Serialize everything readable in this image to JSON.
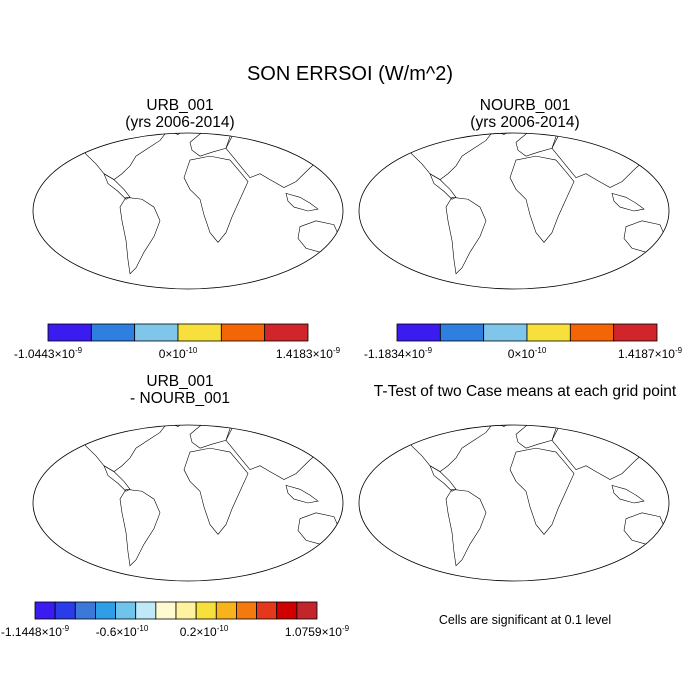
{
  "chart_data": [
    {
      "type": "heatmap",
      "title": "URB_001",
      "subtitle": "(yrs 2006-2014)",
      "colorbar": {
        "colors": [
          "#3b1cf0",
          "#2f7fe0",
          "#7fc6ea",
          "#f7df3c",
          "#f46508",
          "#d0252a"
        ],
        "min_label": "-1.0443×10",
        "min_exp": "-9",
        "mid_label": "0×10",
        "mid_exp": "-10",
        "max_label": "1.4183×10",
        "max_exp": "-9"
      }
    },
    {
      "type": "heatmap",
      "title": "NOURB_001",
      "subtitle": "(yrs 2006-2014)",
      "colorbar": {
        "colors": [
          "#3b1cf0",
          "#2f7fe0",
          "#7fc6ea",
          "#f7df3c",
          "#f46508",
          "#d0252a"
        ],
        "min_label": "-1.1834×10",
        "min_exp": "-9",
        "mid_label": "0×10",
        "mid_exp": "-10",
        "max_label": "1.4187×10",
        "max_exp": "-9"
      }
    },
    {
      "type": "heatmap",
      "title": "URB_001",
      "subtitle": "- NOURB_001",
      "colorbar": {
        "colors": [
          "#3b1cf0",
          "#2a3bea",
          "#3b78d8",
          "#2f9ee8",
          "#6fc4ec",
          "#bfe8f8",
          "#fffbd0",
          "#fff3a0",
          "#f7df3c",
          "#f7b21c",
          "#f47a10",
          "#e4371c",
          "#d00000",
          "#c2252a"
        ],
        "min_label": "-1.1448×10",
        "min_exp": "-9",
        "mid1_label": "-0.6×10",
        "mid1_exp": "-10",
        "mid2_label": "0.2×10",
        "mid2_exp": "-10",
        "max_label": "1.0759×10",
        "max_exp": "-9"
      }
    },
    {
      "type": "scatter",
      "title": "T-Test of two Case means at each grid point",
      "note": "Cells are significant at 0.1 level",
      "marker_color": "#e60000"
    }
  ],
  "page": {
    "title": "SON ERRSOI (W/m^2)"
  }
}
